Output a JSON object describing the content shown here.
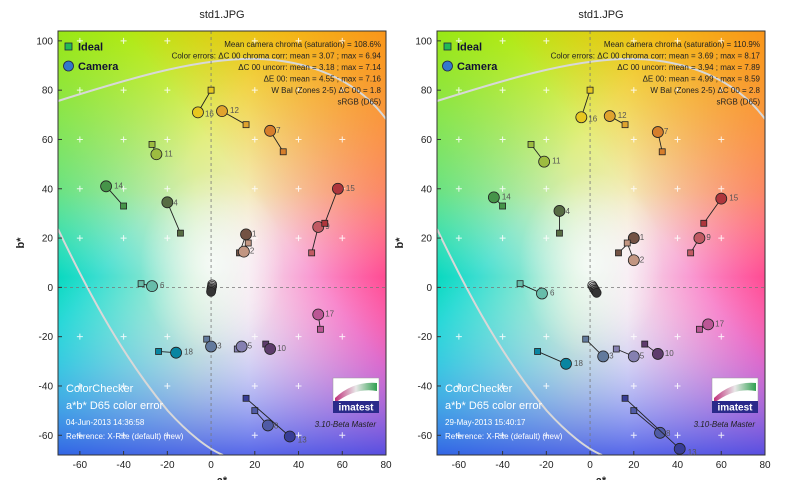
{
  "colors": {
    "ideal_marker": "#22bb55",
    "camera_marker": "#3377cc",
    "frame": "#333333",
    "grid_cross": "#ffffff",
    "gamut_line": "#d8d8d8"
  },
  "chart_data": [
    {
      "type": "scatter",
      "title": "std1.JPG",
      "xlabel": "a*",
      "ylabel": "b*",
      "xlim": [
        -70,
        80
      ],
      "ylim": [
        -68,
        104
      ],
      "xticks": [
        -60,
        -40,
        -20,
        0,
        20,
        40,
        60,
        80
      ],
      "yticks": [
        -60,
        -40,
        -20,
        0,
        20,
        40,
        60,
        80,
        100
      ],
      "legend": {
        "ideal": "Ideal",
        "camera": "Camera",
        "position": "top-left"
      },
      "annotations": [
        "Mean camera chroma (saturation) = 108.6%",
        "Color errors: ΔC 00 chroma corr:  mean = 3.07 ;  max = 6.94",
        "ΔC 00 uncorr:  mean = 3.18 ;  max = 7.14",
        "ΔE 00:  mean = 4.55 ;  max = 7.16",
        "W Bal (Zones 2-5) ΔC 00 = 1.8",
        "sRGB (D65)"
      ],
      "chart_name": "ColorChecker",
      "subtitle": "a*b* D65 color error",
      "timestamp": "04-Jun-2013 14:36:58",
      "reference": "Reference: X-Rite (default) (new)",
      "version": "3.10-Beta  Master",
      "logo_text": "imatest",
      "patches": [
        {
          "id": 1,
          "ideal": [
            13,
            14
          ],
          "camera": [
            16,
            21.5
          ],
          "color": "#735244"
        },
        {
          "id": 2,
          "ideal": [
            17,
            18
          ],
          "camera": [
            15,
            14.5
          ],
          "color": "#c29682"
        },
        {
          "id": 3,
          "ideal": [
            -2,
            -21
          ],
          "camera": [
            0,
            -24
          ],
          "color": "#627a9d"
        },
        {
          "id": 4,
          "ideal": [
            -14,
            22
          ],
          "camera": [
            -20,
            34.5
          ],
          "color": "#576c43"
        },
        {
          "id": 5,
          "ideal": [
            12,
            -25
          ],
          "camera": [
            14,
            -24
          ],
          "color": "#8580b1"
        },
        {
          "id": 6,
          "ideal": [
            -32,
            1.5
          ],
          "camera": [
            -27,
            0.5
          ],
          "color": "#67bdaa"
        },
        {
          "id": 7,
          "ideal": [
            33,
            55
          ],
          "camera": [
            27,
            63.5
          ],
          "color": "#d67e2c"
        },
        {
          "id": 8,
          "ideal": [
            20,
            -50
          ],
          "camera": [
            26,
            -56
          ],
          "color": "#505ba6"
        },
        {
          "id": 9,
          "ideal": [
            46,
            14
          ],
          "camera": [
            49,
            24.5
          ],
          "color": "#c15a63"
        },
        {
          "id": 10,
          "ideal": [
            25,
            -23
          ],
          "camera": [
            27,
            -25
          ],
          "color": "#5e3c6c"
        },
        {
          "id": 11,
          "ideal": [
            -27,
            58
          ],
          "camera": [
            -25,
            54
          ],
          "color": "#9dbc40"
        },
        {
          "id": 12,
          "ideal": [
            16,
            66
          ],
          "camera": [
            5,
            71.5
          ],
          "color": "#e0a32e"
        },
        {
          "id": 13,
          "ideal": [
            16,
            -45
          ],
          "camera": [
            36,
            -60.5
          ],
          "color": "#383d96"
        },
        {
          "id": 14,
          "ideal": [
            -40,
            33
          ],
          "camera": [
            -48,
            41
          ],
          "color": "#469449"
        },
        {
          "id": 15,
          "ideal": [
            52,
            26
          ],
          "camera": [
            58,
            40
          ],
          "color": "#af363c"
        },
        {
          "id": 16,
          "ideal": [
            0,
            80
          ],
          "camera": [
            -6,
            71
          ],
          "color": "#e7c71f"
        },
        {
          "id": 17,
          "ideal": [
            50,
            -17
          ],
          "camera": [
            49,
            -11
          ],
          "color": "#bb5695"
        },
        {
          "id": 18,
          "ideal": [
            -24,
            -26
          ],
          "camera": [
            -16,
            -26.5
          ],
          "color": "#0885a1"
        },
        {
          "id": 19,
          "ideal": [
            0,
            0
          ],
          "camera": [
            0.5,
            1.2
          ],
          "color": "#f3f3f2"
        },
        {
          "id": 20,
          "ideal": [
            0,
            0
          ],
          "camera": [
            0.5,
            0.6
          ],
          "color": "#c8c8c8"
        },
        {
          "id": 21,
          "ideal": [
            0,
            0
          ],
          "camera": [
            0.3,
            0.0
          ],
          "color": "#a0a0a0"
        },
        {
          "id": 22,
          "ideal": [
            0,
            0
          ],
          "camera": [
            0.2,
            -0.6
          ],
          "color": "#7a7a79"
        },
        {
          "id": 23,
          "ideal": [
            0,
            0
          ],
          "camera": [
            0.1,
            -1.2
          ],
          "color": "#555555"
        },
        {
          "id": 24,
          "ideal": [
            0,
            0
          ],
          "camera": [
            0.0,
            -1.8
          ],
          "color": "#343434"
        }
      ]
    },
    {
      "type": "scatter",
      "title": "std1.JPG",
      "xlabel": "a*",
      "ylabel": "b*",
      "xlim": [
        -70,
        80
      ],
      "ylim": [
        -68,
        104
      ],
      "xticks": [
        -60,
        -40,
        -20,
        0,
        20,
        40,
        60,
        80
      ],
      "yticks": [
        -60,
        -40,
        -20,
        0,
        20,
        40,
        60,
        80,
        100
      ],
      "legend": {
        "ideal": "Ideal",
        "camera": "Camera",
        "position": "top-left"
      },
      "annotations": [
        "Mean camera chroma (saturation) = 110.9%",
        "Color errors: ΔC 00 chroma corr:  mean = 3.69 ;  max = 8.17",
        "ΔC 00 uncorr:  mean = 3.94 ;  max = 7.89",
        "ΔE 00:  mean = 4.99 ;  max = 8.59",
        "W Bal (Zones 2-5) ΔC 00 = 2.8",
        "sRGB (D65)"
      ],
      "chart_name": "ColorChecker",
      "subtitle": "a*b* D65 color error",
      "timestamp": "29-May-2013 15:40:17",
      "reference": "Reference: X-Rite (default) (new)",
      "version": "3.10-Beta  Master",
      "logo_text": "imatest",
      "patches": [
        {
          "id": 1,
          "ideal": [
            13,
            14
          ],
          "camera": [
            20,
            20
          ]
        },
        {
          "id": 2,
          "ideal": [
            17,
            18
          ],
          "camera": [
            20,
            11
          ]
        },
        {
          "id": 3,
          "ideal": [
            -2,
            -21
          ],
          "camera": [
            6,
            -28
          ]
        },
        {
          "id": 4,
          "ideal": [
            -14,
            22
          ],
          "camera": [
            -14,
            31
          ]
        },
        {
          "id": 5,
          "ideal": [
            12,
            -25
          ],
          "camera": [
            20,
            -28
          ]
        },
        {
          "id": 6,
          "ideal": [
            -32,
            1.5
          ],
          "camera": [
            -22,
            -2.5
          ]
        },
        {
          "id": 7,
          "ideal": [
            33,
            55
          ],
          "camera": [
            31,
            63
          ]
        },
        {
          "id": 8,
          "ideal": [
            20,
            -50
          ],
          "camera": [
            32,
            -59
          ]
        },
        {
          "id": 9,
          "ideal": [
            46,
            14
          ],
          "camera": [
            50,
            20
          ]
        },
        {
          "id": 10,
          "ideal": [
            25,
            -23
          ],
          "camera": [
            31,
            -27
          ]
        },
        {
          "id": 11,
          "ideal": [
            -27,
            58
          ],
          "camera": [
            -21,
            51
          ]
        },
        {
          "id": 12,
          "ideal": [
            16,
            66
          ],
          "camera": [
            9,
            69.5
          ]
        },
        {
          "id": 13,
          "ideal": [
            16,
            -45
          ],
          "camera": [
            41,
            -65.5
          ]
        },
        {
          "id": 14,
          "ideal": [
            -40,
            33
          ],
          "camera": [
            -44,
            36.5
          ]
        },
        {
          "id": 15,
          "ideal": [
            52,
            26
          ],
          "camera": [
            60,
            36
          ]
        },
        {
          "id": 16,
          "ideal": [
            0,
            80
          ],
          "camera": [
            -4,
            69
          ]
        },
        {
          "id": 17,
          "ideal": [
            50,
            -17
          ],
          "camera": [
            54,
            -15
          ]
        },
        {
          "id": 18,
          "ideal": [
            -24,
            -26
          ],
          "camera": [
            -11,
            -31
          ]
        },
        {
          "id": 19,
          "ideal": [
            0,
            0
          ],
          "camera": [
            1.0,
            0.8
          ]
        },
        {
          "id": 20,
          "ideal": [
            0,
            0
          ],
          "camera": [
            1.4,
            0.2
          ]
        },
        {
          "id": 21,
          "ideal": [
            0,
            0
          ],
          "camera": [
            1.8,
            -0.4
          ]
        },
        {
          "id": 22,
          "ideal": [
            0,
            0
          ],
          "camera": [
            2.2,
            -1.0
          ]
        },
        {
          "id": 23,
          "ideal": [
            0,
            0
          ],
          "camera": [
            2.6,
            -1.6
          ]
        },
        {
          "id": 24,
          "ideal": [
            0,
            0
          ],
          "camera": [
            3.0,
            -2.2
          ]
        }
      ]
    }
  ]
}
